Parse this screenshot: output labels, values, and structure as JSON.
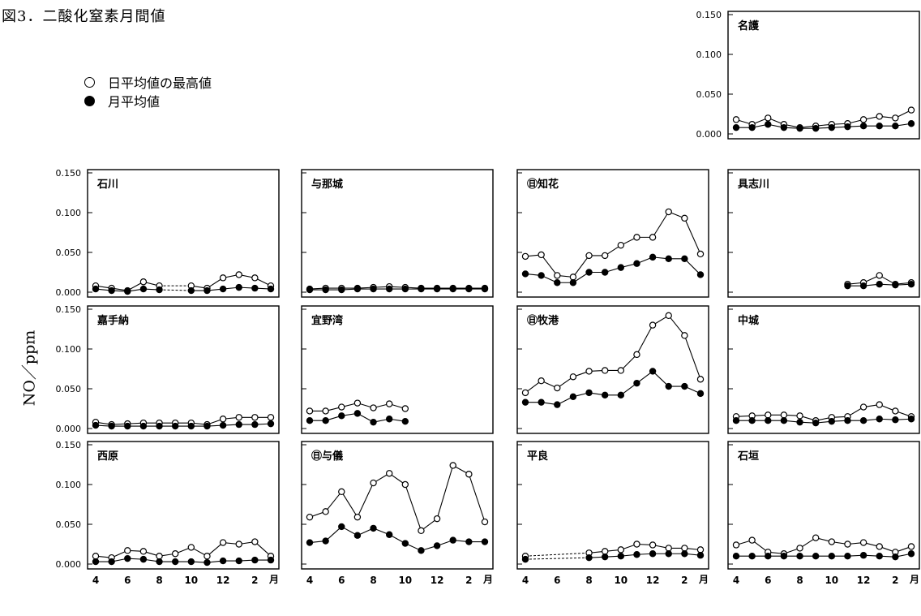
{
  "title": "図3．二酸化窒素月間値",
  "legend": [
    {
      "label": "日平均値の最高値",
      "marker": "open-circle"
    },
    {
      "label": "月平均値",
      "marker": "filled-circle"
    }
  ],
  "y_axis_label": "NO／ppm",
  "chart_data": {
    "type": "line",
    "ylim": [
      0,
      0.15
    ],
    "yticks": [
      "0.150",
      "0.100",
      "0.050",
      "0.000"
    ],
    "x": [
      4,
      5,
      6,
      7,
      8,
      9,
      10,
      11,
      12,
      1,
      2,
      3
    ],
    "xticks": [
      "4",
      "6",
      "8",
      "10",
      "12",
      "2",
      "月"
    ],
    "panels": [
      {
        "name": "名護",
        "max": [
          0.018,
          0.012,
          0.02,
          0.012,
          0.008,
          0.01,
          0.012,
          0.013,
          0.018,
          0.022,
          0.02,
          0.03
        ],
        "mean": [
          0.008,
          0.008,
          0.012,
          0.008,
          0.007,
          0.007,
          0.008,
          0.009,
          0.01,
          0.01,
          0.01,
          0.013
        ]
      },
      {
        "name": "石川",
        "max": [
          0.008,
          0.005,
          0.002,
          0.013,
          0.008,
          null,
          0.008,
          0.005,
          0.018,
          0.022,
          0.018,
          0.008
        ],
        "mean": [
          0.004,
          0.002,
          0.001,
          0.004,
          0.003,
          null,
          0.002,
          0.002,
          0.004,
          0.006,
          0.005,
          0.004
        ]
      },
      {
        "name": "与那城",
        "max": [
          0.004,
          0.005,
          0.005,
          0.005,
          0.006,
          0.007,
          0.006,
          0.005,
          0.005,
          0.005,
          0.005,
          0.005
        ],
        "mean": [
          0.003,
          0.003,
          0.003,
          0.004,
          0.004,
          0.004,
          0.004,
          0.004,
          0.004,
          0.004,
          0.004,
          0.004
        ]
      },
      {
        "name": "㊐知花",
        "max": [
          0.045,
          0.047,
          0.021,
          0.019,
          0.046,
          0.046,
          0.059,
          0.069,
          0.069,
          0.101,
          0.093,
          0.048
        ],
        "mean": [
          0.023,
          0.021,
          0.012,
          0.012,
          0.025,
          0.025,
          0.031,
          0.036,
          0.044,
          0.042,
          0.042,
          0.022
        ]
      },
      {
        "name": "具志川",
        "max": [
          null,
          null,
          null,
          null,
          null,
          null,
          null,
          0.01,
          0.012,
          0.021,
          0.01,
          0.012
        ],
        "mean": [
          null,
          null,
          null,
          null,
          null,
          null,
          null,
          0.008,
          0.008,
          0.01,
          0.009,
          0.01
        ]
      },
      {
        "name": "嘉手納",
        "max": [
          0.008,
          0.005,
          0.006,
          0.007,
          0.007,
          0.007,
          0.007,
          0.005,
          0.012,
          0.014,
          0.014,
          0.014
        ],
        "mean": [
          0.004,
          0.003,
          0.003,
          0.003,
          0.003,
          0.003,
          0.003,
          0.003,
          0.004,
          0.005,
          0.005,
          0.006
        ]
      },
      {
        "name": "宜野湾",
        "max": [
          0.022,
          0.022,
          0.027,
          0.032,
          0.026,
          0.031,
          0.025,
          null,
          null,
          null,
          null,
          null
        ],
        "mean": [
          0.01,
          0.01,
          0.016,
          0.019,
          0.008,
          0.012,
          0.009,
          null,
          null,
          null,
          null,
          null
        ]
      },
      {
        "name": "㊐牧港",
        "max": [
          0.045,
          0.06,
          0.051,
          0.065,
          0.072,
          0.073,
          0.073,
          0.093,
          0.13,
          0.142,
          0.117,
          0.062
        ],
        "mean": [
          0.033,
          0.033,
          0.03,
          0.04,
          0.045,
          0.042,
          0.042,
          0.057,
          0.072,
          0.053,
          0.053,
          0.044
        ]
      },
      {
        "name": "中城",
        "max": [
          0.015,
          0.016,
          0.017,
          0.017,
          0.016,
          0.01,
          0.014,
          0.015,
          0.027,
          0.03,
          0.022,
          0.015
        ],
        "mean": [
          0.01,
          0.01,
          0.01,
          0.01,
          0.008,
          0.007,
          0.009,
          0.01,
          0.01,
          0.012,
          0.011,
          0.012
        ]
      },
      {
        "name": "西原",
        "max": [
          0.01,
          0.008,
          0.017,
          0.016,
          0.01,
          0.013,
          0.021,
          0.01,
          0.027,
          0.025,
          0.028,
          0.01
        ],
        "mean": [
          0.003,
          0.003,
          0.007,
          0.006,
          0.003,
          0.003,
          0.003,
          0.002,
          0.004,
          0.004,
          0.005,
          0.005
        ]
      },
      {
        "name": "㊐与儀",
        "max": [
          0.059,
          0.066,
          0.091,
          0.059,
          0.102,
          0.114,
          0.1,
          0.042,
          0.057,
          0.124,
          0.113,
          0.053
        ],
        "mean": [
          0.027,
          0.029,
          0.047,
          0.036,
          0.045,
          0.037,
          0.026,
          0.017,
          0.023,
          0.03,
          0.028,
          0.028
        ]
      },
      {
        "name": "平良",
        "max": [
          0.01,
          null,
          null,
          null,
          0.014,
          0.016,
          0.018,
          0.025,
          0.024,
          0.02,
          0.02,
          0.018
        ],
        "mean": [
          0.006,
          null,
          null,
          null,
          0.008,
          0.009,
          0.01,
          0.012,
          0.013,
          0.013,
          0.013,
          0.011
        ]
      },
      {
        "name": "石垣",
        "max": [
          0.024,
          0.03,
          0.015,
          0.013,
          0.02,
          0.033,
          0.028,
          0.025,
          0.027,
          0.022,
          0.015,
          0.022
        ],
        "mean": [
          0.01,
          0.01,
          0.01,
          0.01,
          0.01,
          0.01,
          0.01,
          0.01,
          0.011,
          0.01,
          0.009,
          0.013
        ]
      }
    ]
  }
}
